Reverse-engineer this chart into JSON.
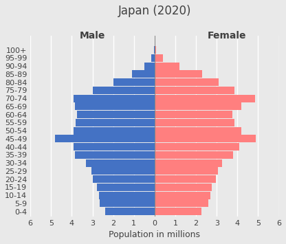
{
  "title": "Japan (2020)",
  "xlabel": "Population in millions",
  "age_groups": [
    "0-4",
    "5-9",
    "10-14",
    "15-19",
    "20-24",
    "25-29",
    "30-34",
    "35-39",
    "40-44",
    "45-49",
    "50-54",
    "55-59",
    "60-64",
    "65-69",
    "70-74",
    "75-79",
    "80-84",
    "85-89",
    "90-94",
    "95-99",
    "100+"
  ],
  "male": [
    2.4,
    2.65,
    2.7,
    2.8,
    3.0,
    3.05,
    3.3,
    3.85,
    3.9,
    4.8,
    3.9,
    3.8,
    3.75,
    3.85,
    3.9,
    3.0,
    2.0,
    1.1,
    0.5,
    0.15,
    0.03
  ],
  "female": [
    2.25,
    2.6,
    2.7,
    2.75,
    2.95,
    3.05,
    3.25,
    3.8,
    4.1,
    4.9,
    4.2,
    3.85,
    3.75,
    4.2,
    4.85,
    3.85,
    3.1,
    2.3,
    1.2,
    0.4,
    0.08
  ],
  "male_color": "#4472C4",
  "female_color": "#FF7F7F",
  "background_color": "#E9E9E9",
  "plot_bg_color": "#E9E9E9",
  "gridline_color": "#FFFFFF",
  "text_color": "#404040",
  "xlim": [
    -6,
    6
  ],
  "xticks": [
    -6,
    -5,
    -4,
    -3,
    -2,
    -1,
    0,
    1,
    2,
    3,
    4,
    5,
    6
  ],
  "xticklabels": [
    "6",
    "5",
    "4",
    "3",
    "2",
    "1",
    "0",
    "1",
    "2",
    "3",
    "4",
    "5",
    "6"
  ],
  "male_label": "Male",
  "female_label": "Female",
  "title_fontsize": 12,
  "label_fontsize": 9,
  "tick_fontsize": 8,
  "header_fontsize": 10
}
